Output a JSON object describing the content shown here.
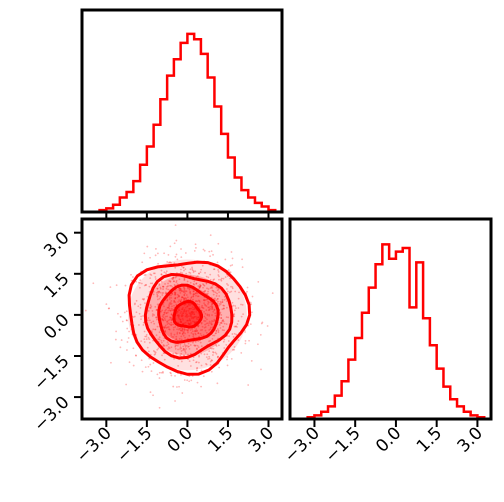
{
  "chart_data": [
    {
      "type": "histogram",
      "panel": "x-marginal",
      "color": "#ff0000",
      "xlim": [
        -3.9,
        3.5
      ],
      "ylim": [
        0,
        1
      ],
      "bin_edges": [
        -3.5,
        -3.25,
        -3.0,
        -2.75,
        -2.5,
        -2.25,
        -2.0,
        -1.75,
        -1.5,
        -1.25,
        -1.0,
        -0.75,
        -0.5,
        -0.25,
        0.0,
        0.25,
        0.5,
        0.75,
        1.0,
        1.25,
        1.5,
        1.75,
        2.0,
        2.25,
        2.5,
        2.75,
        3.0,
        3.25,
        3.5
      ],
      "values": [
        0.0,
        0.01,
        0.02,
        0.04,
        0.08,
        0.11,
        0.17,
        0.26,
        0.36,
        0.48,
        0.62,
        0.75,
        0.84,
        0.93,
        0.98,
        0.95,
        0.87,
        0.74,
        0.58,
        0.43,
        0.3,
        0.19,
        0.12,
        0.08,
        0.05,
        0.03,
        0.01,
        0.0
      ],
      "xticks": [
        -3.0,
        -1.5,
        0.0,
        1.5,
        3.0
      ]
    },
    {
      "type": "scatter-contour",
      "panel": "joint",
      "color": "#ff0000",
      "xlim": [
        -3.9,
        3.5
      ],
      "ylim": [
        -3.8,
        3.5
      ],
      "contour_levels": [
        0.5,
        1.1,
        1.6,
        2.2
      ],
      "contour_center": [
        0.0,
        0.0
      ],
      "scatter": "dense point cloud, standard normal",
      "xticks": [
        -3.0,
        -1.5,
        0.0,
        1.5,
        3.0
      ],
      "yticks": [
        -3.0,
        -1.5,
        0.0,
        1.5,
        3.0
      ],
      "xtick_labels": [
        "−3.0",
        "−1.5",
        "0.0",
        "1.5",
        "3.0"
      ],
      "ytick_labels": [
        "−3.0",
        "−1.5",
        "0.0",
        "1.5",
        "3.0"
      ]
    },
    {
      "type": "histogram",
      "panel": "y-marginal",
      "color": "#ff0000",
      "xlim": [
        -3.9,
        3.5
      ],
      "ylim": [
        0,
        1
      ],
      "bin_edges": [
        -3.5,
        -3.25,
        -3.0,
        -2.75,
        -2.5,
        -2.25,
        -2.0,
        -1.75,
        -1.5,
        -1.25,
        -1.0,
        -0.75,
        -0.5,
        -0.25,
        0.0,
        0.25,
        0.5,
        0.75,
        1.0,
        1.25,
        1.5,
        1.75,
        2.0,
        2.25,
        2.5,
        2.75,
        3.0,
        3.25,
        3.5
      ],
      "values": [
        0.0,
        0.01,
        0.02,
        0.04,
        0.07,
        0.13,
        0.21,
        0.33,
        0.45,
        0.59,
        0.73,
        0.86,
        0.97,
        0.89,
        0.93,
        0.95,
        0.62,
        0.87,
        0.56,
        0.41,
        0.28,
        0.18,
        0.11,
        0.07,
        0.04,
        0.02,
        0.01,
        0.0
      ],
      "xticks": [
        -3.0,
        -1.5,
        0.0,
        1.5,
        3.0
      ],
      "xtick_labels": [
        "−3.0",
        "−1.5",
        "0.0",
        "1.5",
        "3.0"
      ]
    }
  ]
}
